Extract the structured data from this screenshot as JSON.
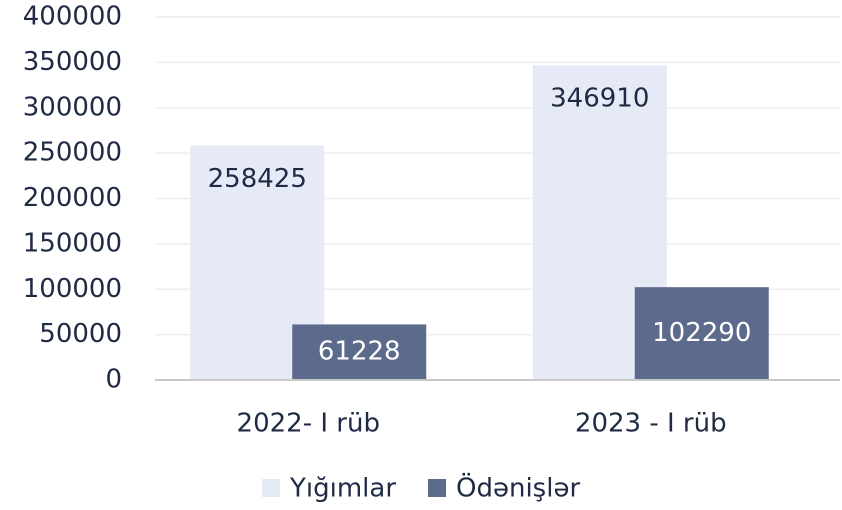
{
  "chart_data": {
    "type": "bar",
    "categories": [
      "2022- I rüb",
      "2023 - I rüb"
    ],
    "series": [
      {
        "name": "Yığımlar",
        "color": "#e6eaf6",
        "values": [
          258425,
          346910
        ]
      },
      {
        "name": "Ödənişlər",
        "color": "#5c6b8c",
        "values": [
          61228,
          102290
        ]
      }
    ],
    "ylim": [
      0,
      400000
    ],
    "yticks": [
      0,
      50000,
      100000,
      150000,
      200000,
      250000,
      300000,
      350000,
      400000
    ],
    "grid": true,
    "legend": "bottom"
  }
}
